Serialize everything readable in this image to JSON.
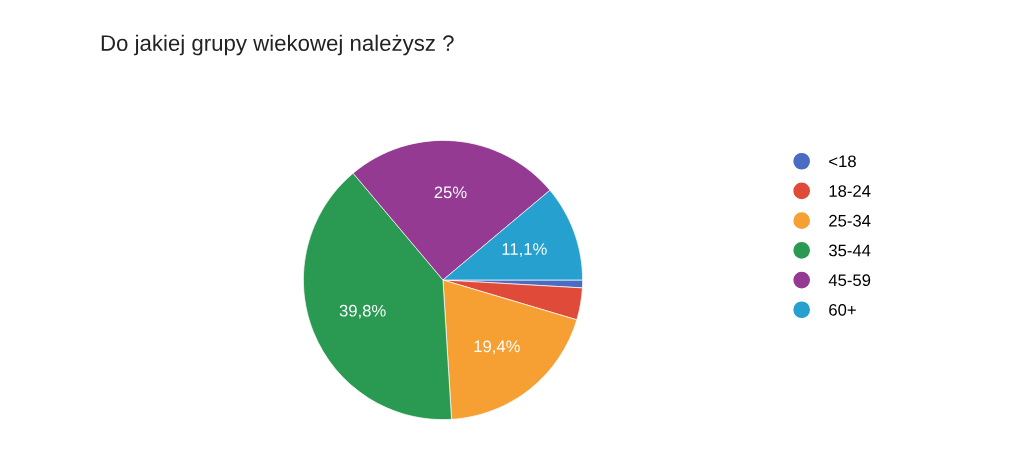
{
  "chart_data": {
    "type": "pie",
    "title": "Do jakiej grupy wiekowej należysz ?",
    "categories": [
      "<18",
      "18-24",
      "25-34",
      "35-44",
      "45-59",
      "60+"
    ],
    "values": [
      0.9,
      3.7,
      19.4,
      39.8,
      25,
      11.1
    ],
    "colors": [
      "#4a6cc2",
      "#e04b39",
      "#f6a034",
      "#2a9a52",
      "#943a93",
      "#26a0cf"
    ],
    "value_labels": [
      null,
      null,
      "19,4%",
      "39,8%",
      "25%",
      "11,1%"
    ],
    "legend": "right"
  }
}
